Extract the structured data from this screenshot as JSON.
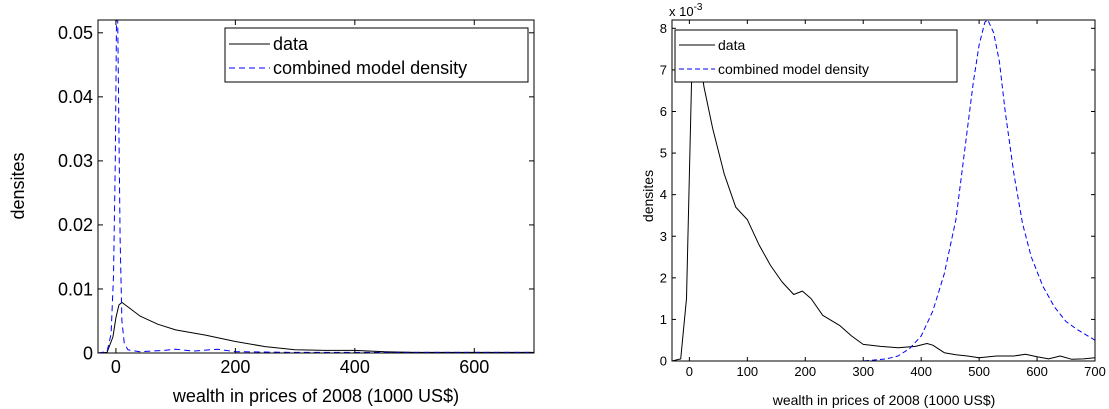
{
  "chart_data": [
    {
      "type": "line",
      "xlabel": "wealth in prices of 2008 (1000 US$)",
      "ylabel": "densites",
      "xlim": [
        -30,
        700
      ],
      "ylim": [
        0,
        0.052
      ],
      "xticks": [
        0,
        200,
        400,
        600
      ],
      "xtick_labels": [
        "0",
        "200",
        "400",
        "600"
      ],
      "yticks": [
        0,
        0.01,
        0.02,
        0.03,
        0.04,
        0.05
      ],
      "ytick_labels": [
        "0",
        "0.01",
        "0.02",
        "0.03",
        "0.04",
        "0.05"
      ],
      "legend": {
        "position": "top-right",
        "entries": [
          "data",
          "combined model density"
        ]
      },
      "grid": false,
      "series": [
        {
          "name": "data",
          "color": "#000000",
          "dash": "solid",
          "points": [
            [
              -30,
              0
            ],
            [
              -15,
              0.0001
            ],
            [
              -5,
              0.0025
            ],
            [
              0,
              0.0055
            ],
            [
              5,
              0.0075
            ],
            [
              10,
              0.0079
            ],
            [
              20,
              0.0072
            ],
            [
              40,
              0.0058
            ],
            [
              70,
              0.0045
            ],
            [
              100,
              0.0036
            ],
            [
              150,
              0.0028
            ],
            [
              200,
              0.0018
            ],
            [
              250,
              0.001
            ],
            [
              300,
              0.0005
            ],
            [
              350,
              0.0004
            ],
            [
              400,
              0.0004
            ],
            [
              450,
              0.0002
            ],
            [
              500,
              0.0001
            ],
            [
              600,
              0.0001
            ],
            [
              700,
              0.0001
            ]
          ]
        },
        {
          "name": "combined model density",
          "color": "#0000ff",
          "dash": "dashed",
          "points": [
            [
              -30,
              0
            ],
            [
              -15,
              0.0002
            ],
            [
              -8,
              0.003
            ],
            [
              -4,
              0.012
            ],
            [
              -1,
              0.03
            ],
            [
              1,
              0.052
            ],
            [
              3,
              0.052
            ],
            [
              5,
              0.035
            ],
            [
              7,
              0.018
            ],
            [
              10,
              0.005
            ],
            [
              14,
              0.0015
            ],
            [
              20,
              0.0005
            ],
            [
              40,
              0.0002
            ],
            [
              80,
              0.0004
            ],
            [
              100,
              0.0006
            ],
            [
              130,
              0.0003
            ],
            [
              170,
              0.0006
            ],
            [
              200,
              0.0002
            ],
            [
              300,
              0.0001
            ],
            [
              700,
              0.0001
            ]
          ]
        }
      ]
    },
    {
      "type": "line",
      "xlabel": "wealth in prices of 2008 (1000 US$)",
      "ylabel": "densites",
      "y_multiplier": "x 10",
      "y_exponent": "-3",
      "xlim": [
        -30,
        700
      ],
      "ylim": [
        0,
        8.2
      ],
      "xticks": [
        0,
        100,
        200,
        300,
        400,
        500,
        600,
        700
      ],
      "xtick_labels": [
        "0",
        "100",
        "200",
        "300",
        "400",
        "500",
        "600",
        "700"
      ],
      "yticks": [
        0,
        1,
        2,
        3,
        4,
        5,
        6,
        7,
        8
      ],
      "ytick_labels": [
        "0",
        "1",
        "2",
        "3",
        "4",
        "5",
        "6",
        "7",
        "8"
      ],
      "legend": {
        "position": "top-left",
        "entries": [
          "data",
          "combined model density"
        ]
      },
      "grid": false,
      "series": [
        {
          "name": "data",
          "color": "#000000",
          "dash": "solid",
          "points": [
            [
              -30,
              0
            ],
            [
              -15,
              0.05
            ],
            [
              -5,
              1.5
            ],
            [
              0,
              4.5
            ],
            [
              5,
              7.5
            ],
            [
              10,
              7.9
            ],
            [
              15,
              7.6
            ],
            [
              25,
              6.6
            ],
            [
              40,
              5.6
            ],
            [
              60,
              4.5
            ],
            [
              80,
              3.7
            ],
            [
              100,
              3.4
            ],
            [
              120,
              2.8
            ],
            [
              140,
              2.3
            ],
            [
              160,
              1.9
            ],
            [
              180,
              1.6
            ],
            [
              195,
              1.68
            ],
            [
              210,
              1.5
            ],
            [
              230,
              1.1
            ],
            [
              260,
              0.85
            ],
            [
              280,
              0.6
            ],
            [
              300,
              0.4
            ],
            [
              330,
              0.35
            ],
            [
              360,
              0.32
            ],
            [
              390,
              0.35
            ],
            [
              410,
              0.42
            ],
            [
              420,
              0.38
            ],
            [
              440,
              0.2
            ],
            [
              460,
              0.15
            ],
            [
              480,
              0.12
            ],
            [
              500,
              0.08
            ],
            [
              530,
              0.12
            ],
            [
              560,
              0.12
            ],
            [
              580,
              0.16
            ],
            [
              600,
              0.1
            ],
            [
              620,
              0.05
            ],
            [
              640,
              0.12
            ],
            [
              660,
              0.04
            ],
            [
              680,
              0.05
            ],
            [
              700,
              0.08
            ]
          ]
        },
        {
          "name": "combined model density",
          "color": "#0000ff",
          "dash": "dashed",
          "points": [
            [
              -30,
              0
            ],
            [
              300,
              0
            ],
            [
              340,
              0.05
            ],
            [
              360,
              0.12
            ],
            [
              380,
              0.3
            ],
            [
              400,
              0.6
            ],
            [
              420,
              1.2
            ],
            [
              440,
              2.1
            ],
            [
              460,
              3.4
            ],
            [
              470,
              4.5
            ],
            [
              480,
              5.6
            ],
            [
              490,
              6.7
            ],
            [
              500,
              7.6
            ],
            [
              510,
              8.15
            ],
            [
              515,
              8.2
            ],
            [
              525,
              7.9
            ],
            [
              535,
              7.2
            ],
            [
              545,
              6.0
            ],
            [
              560,
              4.5
            ],
            [
              575,
              3.3
            ],
            [
              590,
              2.5
            ],
            [
              610,
              1.8
            ],
            [
              630,
              1.3
            ],
            [
              650,
              0.95
            ],
            [
              670,
              0.75
            ],
            [
              700,
              0.5
            ]
          ]
        }
      ]
    }
  ]
}
